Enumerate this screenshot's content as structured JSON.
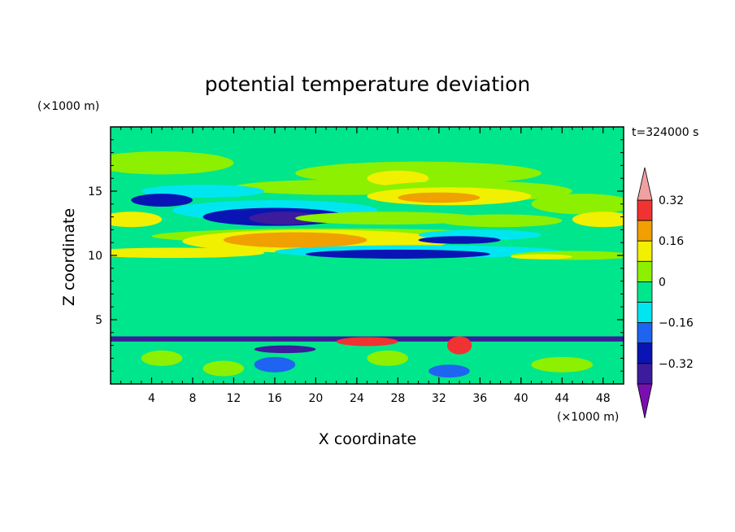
{
  "chart_data": {
    "type": "heatmap",
    "title": "potential temperature deviation",
    "xlabel": "X coordinate",
    "ylabel": "Z coordinate",
    "x_unit": "(×1000 m)",
    "y_unit": "(×1000 m)",
    "time_label": "t=324000 s",
    "xlim": [
      0,
      50
    ],
    "ylim": [
      0,
      20
    ],
    "x_ticks": [
      4,
      8,
      12,
      16,
      20,
      24,
      28,
      32,
      36,
      40,
      44,
      48
    ],
    "y_ticks": [
      5,
      10,
      15
    ],
    "colorbar": {
      "labels": [
        "0.32",
        "0.16",
        "0",
        "−0.16",
        "−0.32"
      ],
      "label_values": [
        0.32,
        0.16,
        0,
        -0.16,
        -0.32
      ],
      "levels": [
        -0.4,
        -0.32,
        -0.24,
        -0.16,
        -0.08,
        0,
        0.08,
        0.16,
        0.24,
        0.32,
        0.4
      ],
      "colors": [
        "#7a0fb0",
        "#3c1c9c",
        "#0a14b4",
        "#1e64f0",
        "#00e6f0",
        "#00e68c",
        "#8cf000",
        "#f0f000",
        "#f0a000",
        "#f03232",
        "#f0a0a0"
      ],
      "extend": "both"
    },
    "contours": {
      "background": 0.04,
      "regions": [
        {
          "cx": 5,
          "cy": 17.2,
          "rx": 7,
          "ry": 0.9,
          "v": 0.1
        },
        {
          "cx": 30,
          "cy": 16.4,
          "rx": 12,
          "ry": 0.9,
          "v": 0.1
        },
        {
          "cx": 23,
          "cy": 15.3,
          "rx": 11,
          "ry": 0.6,
          "v": 0.12
        },
        {
          "cx": 28,
          "cy": 16.0,
          "rx": 3,
          "ry": 0.6,
          "v": 0.2
        },
        {
          "cx": 9,
          "cy": 15.0,
          "rx": 6,
          "ry": 0.5,
          "v": -0.08
        },
        {
          "cx": 5,
          "cy": 14.3,
          "rx": 3,
          "ry": 0.5,
          "v": -0.2
        },
        {
          "cx": 35,
          "cy": 15.0,
          "rx": 10,
          "ry": 0.8,
          "v": 0.08
        },
        {
          "cx": 33,
          "cy": 14.6,
          "rx": 8,
          "ry": 0.7,
          "v": 0.2
        },
        {
          "cx": 32,
          "cy": 14.5,
          "rx": 4,
          "ry": 0.4,
          "v": 0.28
        },
        {
          "cx": 46,
          "cy": 14.0,
          "rx": 5,
          "ry": 0.8,
          "v": 0.08
        },
        {
          "cx": 16,
          "cy": 13.5,
          "rx": 10,
          "ry": 0.8,
          "v": -0.08
        },
        {
          "cx": 16,
          "cy": 13.0,
          "rx": 7,
          "ry": 0.7,
          "v": -0.2
        },
        {
          "cx": 17,
          "cy": 12.9,
          "rx": 3.5,
          "ry": 0.5,
          "v": -0.3
        },
        {
          "cx": 2,
          "cy": 12.8,
          "rx": 3,
          "ry": 0.6,
          "v": 0.2
        },
        {
          "cx": 27,
          "cy": 12.9,
          "rx": 9,
          "ry": 0.5,
          "v": 0.08
        },
        {
          "cx": 38,
          "cy": 12.7,
          "rx": 6,
          "ry": 0.5,
          "v": 0.1
        },
        {
          "cx": 48,
          "cy": 12.8,
          "rx": 3,
          "ry": 0.6,
          "v": 0.2
        },
        {
          "cx": 22,
          "cy": 11.5,
          "rx": 18,
          "ry": 0.6,
          "v": 0.08
        },
        {
          "cx": 20,
          "cy": 11.1,
          "rx": 13,
          "ry": 0.9,
          "v": 0.16
        },
        {
          "cx": 18,
          "cy": 11.2,
          "rx": 7,
          "ry": 0.6,
          "v": 0.26
        },
        {
          "cx": 36,
          "cy": 11.6,
          "rx": 6,
          "ry": 0.4,
          "v": -0.08
        },
        {
          "cx": 34,
          "cy": 11.2,
          "rx": 4,
          "ry": 0.3,
          "v": -0.2
        },
        {
          "cx": 6,
          "cy": 10.2,
          "rx": 9,
          "ry": 0.4,
          "v": 0.16
        },
        {
          "cx": 30,
          "cy": 10.3,
          "rx": 14,
          "ry": 0.5,
          "v": -0.08
        },
        {
          "cx": 28,
          "cy": 10.1,
          "rx": 9,
          "ry": 0.35,
          "v": -0.2
        },
        {
          "cx": 45,
          "cy": 10.0,
          "rx": 6,
          "ry": 0.35,
          "v": 0.12
        },
        {
          "cx": 42,
          "cy": 9.9,
          "rx": 3,
          "ry": 0.2,
          "v": 0.2
        },
        {
          "cx": 10,
          "cy": 6.8,
          "rx": 9,
          "ry": 2.8,
          "v": 0.03
        },
        {
          "cx": 29,
          "cy": 6.5,
          "rx": 3,
          "ry": 2.5,
          "v": 0.03
        },
        {
          "cx": 44,
          "cy": 7.5,
          "rx": 4,
          "ry": 2.0,
          "v": 0.03
        },
        {
          "cx": 25,
          "cy": 3.3,
          "rx": 3,
          "ry": 0.35,
          "v": 0.36
        },
        {
          "cx": 34,
          "cy": 3.0,
          "rx": 1.2,
          "ry": 0.7,
          "v": 0.36
        },
        {
          "cx": 17,
          "cy": 2.7,
          "rx": 3,
          "ry": 0.3,
          "v": -0.28
        },
        {
          "cx": 5,
          "cy": 2.0,
          "rx": 2,
          "ry": 0.6,
          "v": 0.12
        },
        {
          "cx": 11,
          "cy": 1.2,
          "rx": 2,
          "ry": 0.6,
          "v": 0.12
        },
        {
          "cx": 16,
          "cy": 1.5,
          "rx": 2,
          "ry": 0.6,
          "v": -0.1
        },
        {
          "cx": 27,
          "cy": 2.0,
          "rx": 2,
          "ry": 0.6,
          "v": 0.12
        },
        {
          "cx": 33,
          "cy": 1.0,
          "rx": 2,
          "ry": 0.5,
          "v": -0.12
        },
        {
          "cx": 44,
          "cy": 1.5,
          "rx": 3,
          "ry": 0.6,
          "v": 0.12
        }
      ],
      "surface_band": {
        "z_min": 3.3,
        "z_max": 3.7,
        "v": -0.3
      }
    }
  }
}
